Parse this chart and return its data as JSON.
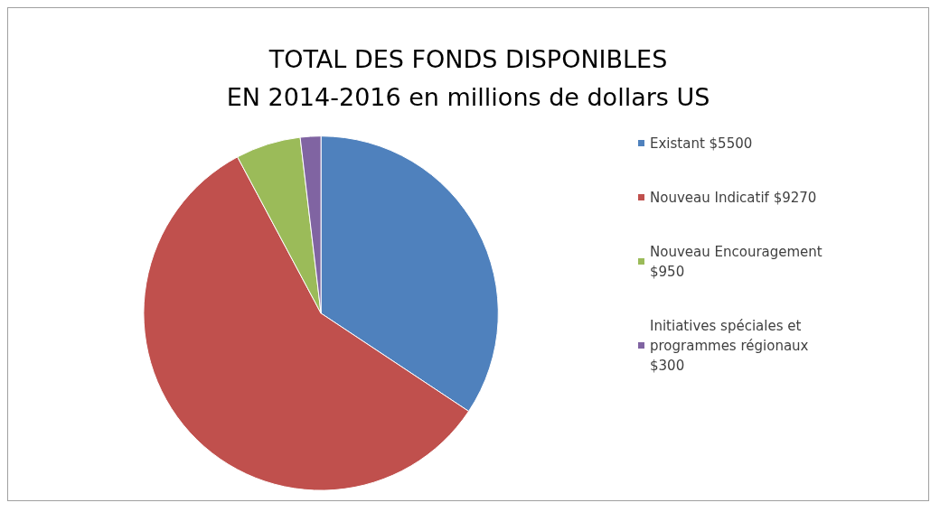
{
  "chart_data": {
    "type": "pie",
    "title": "TOTAL DES FONDS DISPONIBLES\nEN 2014-2016 en millions de dollars US",
    "categories": [
      "Existant $5500",
      "Nouveau Indicatif $9270",
      "Nouveau Encouragement $950",
      "Initiatives spéciales et programmes régionaux $300"
    ],
    "values": [
      5500,
      9270,
      950,
      300
    ],
    "colors": [
      "#4f81bd",
      "#c0504d",
      "#9bbb59",
      "#8064a2"
    ],
    "legend": "right"
  }
}
